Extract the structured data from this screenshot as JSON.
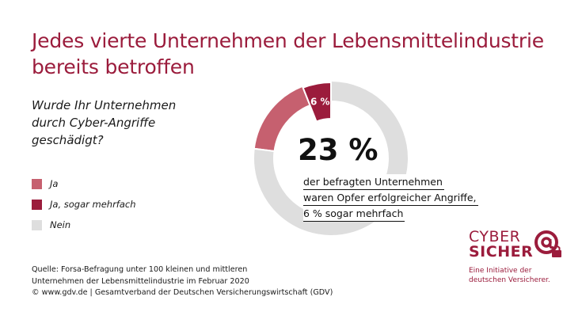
{
  "title": "Jedes vierte Unternehmen der Lebensmittelindustrie bereits betroffen",
  "question": "Wurde Ihr Unternehmen durch Cyber-Angriffe geschädigt?",
  "colors": {
    "ja": "#c6606f",
    "ja_mehrfach": "#9b1c3c",
    "nein": "#dedede",
    "brand": "#9b1c3c"
  },
  "chart_data": {
    "type": "pie",
    "categories": [
      "Ja",
      "Ja, sogar mehrfach",
      "Nein"
    ],
    "values": [
      17,
      6,
      77
    ],
    "unit": "%",
    "data_labels": [
      {
        "category": "Ja, sogar mehrfach",
        "label": "6 %"
      }
    ],
    "center_value": "23 %",
    "center_text": [
      "der befragten Unternehmen",
      "waren Opfer erfolgreicher Angriffe,",
      "6 % sogar mehrfach"
    ]
  },
  "source": [
    "Quelle: Forsa-Befragung unter 100 kleinen und mittleren",
    "Unternehmen der Lebensmittelindustrie im Februar 2020",
    "© www.gdv.de | Gesamtverband der Deutschen Versicherungswirtschaft (GDV)"
  ],
  "logo": {
    "line1": "CYBER",
    "line2": "SICHER",
    "tagline": [
      "Eine Initiative der",
      "deutschen Versicherer."
    ],
    "icon": "at-sign-lock-icon"
  }
}
